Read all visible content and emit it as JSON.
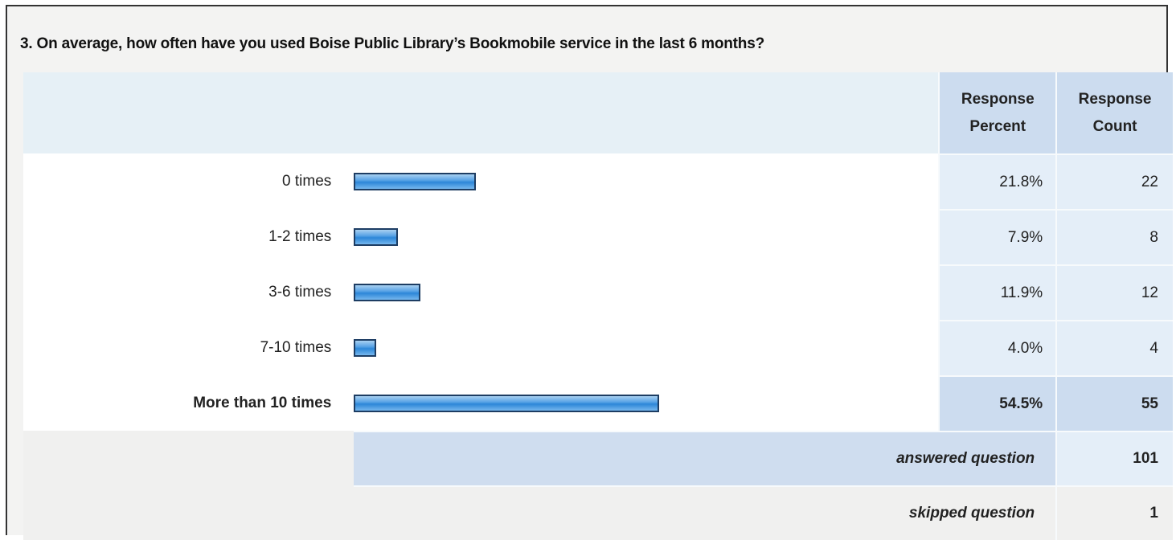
{
  "question": "3. On average, how often have you used Boise Public Library’s Bookmobile service in the last 6 months?",
  "headers": {
    "response_percent": "Response Percent",
    "response_count": "Response Count"
  },
  "rows": [
    {
      "label": "0 times",
      "percent": "21.8%",
      "count": "22",
      "fraction": 0.218
    },
    {
      "label": "1-2 times",
      "percent": "7.9%",
      "count": "8",
      "fraction": 0.079
    },
    {
      "label": "3-6 times",
      "percent": "11.9%",
      "count": "12",
      "fraction": 0.119
    },
    {
      "label": "7-10 times",
      "percent": "4.0%",
      "count": "4",
      "fraction": 0.04
    },
    {
      "label": "More than 10 times",
      "percent": "54.5%",
      "count": "55",
      "fraction": 0.545
    }
  ],
  "footer": {
    "answered_label": "answered question",
    "answered_value": "101",
    "skipped_label": "skipped question",
    "skipped_value": "1"
  },
  "colors": {
    "bar": "#2c86d8",
    "header_bg": "#ccdcef",
    "cell_bg": "#e4eef8"
  }
}
